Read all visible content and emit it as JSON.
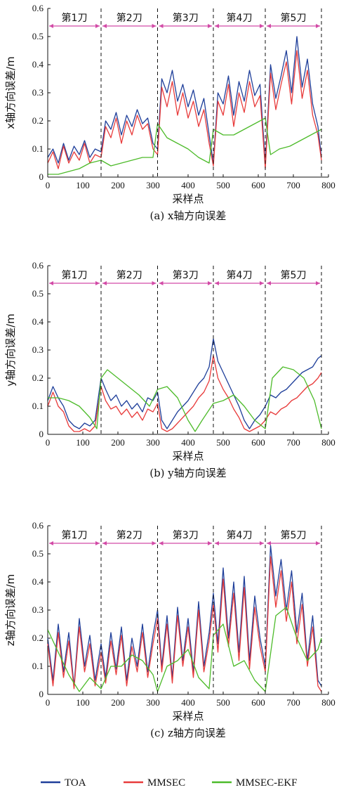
{
  "colors": {
    "TOA": "#1f3f9a",
    "MMSEC": "#e83b3b",
    "MMSEC-EKF": "#4dbb2a",
    "segment_arrow": "#d24aa6"
  },
  "legend": [
    "TOA",
    "MMSEC",
    "MMSEC-EKF"
  ],
  "chart_data": [
    {
      "type": "line",
      "title": "",
      "caption": "(a)  x轴方向误差",
      "xlabel": "采样点",
      "ylabel": "x轴方向误差/m",
      "xlim": [
        0,
        800
      ],
      "ylim": [
        0,
        0.6
      ],
      "xticks": [
        0,
        100,
        200,
        300,
        400,
        500,
        600,
        700,
        800
      ],
      "yticks": [
        "0",
        "0.1",
        "0.2",
        "0.3",
        "0.4",
        "0.5",
        "0.6"
      ],
      "segments": [
        {
          "label": "第1刀",
          "start": 0,
          "end": 152
        },
        {
          "label": "第2刀",
          "start": 152,
          "end": 313
        },
        {
          "label": "第3刀",
          "start": 313,
          "end": 472
        },
        {
          "label": "第4刀",
          "start": 472,
          "end": 620
        },
        {
          "label": "第5刀",
          "start": 620,
          "end": 780
        }
      ],
      "series": [
        {
          "name": "TOA",
          "x": [
            0,
            15,
            30,
            45,
            60,
            75,
            90,
            105,
            120,
            135,
            152,
            165,
            180,
            195,
            210,
            225,
            240,
            255,
            270,
            285,
            300,
            313,
            325,
            340,
            355,
            370,
            385,
            400,
            415,
            430,
            445,
            460,
            472,
            485,
            500,
            515,
            530,
            545,
            560,
            575,
            590,
            605,
            620,
            635,
            650,
            665,
            680,
            695,
            710,
            725,
            740,
            755,
            770,
            780
          ],
          "y": [
            0.07,
            0.1,
            0.05,
            0.12,
            0.06,
            0.11,
            0.08,
            0.13,
            0.07,
            0.1,
            0.09,
            0.2,
            0.17,
            0.23,
            0.15,
            0.22,
            0.18,
            0.24,
            0.19,
            0.21,
            0.12,
            0.1,
            0.35,
            0.3,
            0.38,
            0.27,
            0.33,
            0.25,
            0.31,
            0.22,
            0.28,
            0.15,
            0.05,
            0.3,
            0.26,
            0.36,
            0.22,
            0.34,
            0.27,
            0.38,
            0.29,
            0.33,
            0.05,
            0.4,
            0.28,
            0.36,
            0.45,
            0.3,
            0.5,
            0.32,
            0.42,
            0.26,
            0.18,
            0.07
          ]
        },
        {
          "name": "MMSEC",
          "x": [
            0,
            15,
            30,
            45,
            60,
            75,
            90,
            105,
            120,
            135,
            152,
            165,
            180,
            195,
            210,
            225,
            240,
            255,
            270,
            285,
            300,
            313,
            325,
            340,
            355,
            370,
            385,
            400,
            415,
            430,
            445,
            460,
            472,
            485,
            500,
            515,
            530,
            545,
            560,
            575,
            590,
            605,
            620,
            635,
            650,
            665,
            680,
            695,
            710,
            725,
            740,
            755,
            770,
            780
          ],
          "y": [
            0.05,
            0.09,
            0.03,
            0.11,
            0.05,
            0.09,
            0.06,
            0.12,
            0.05,
            0.08,
            0.07,
            0.18,
            0.14,
            0.21,
            0.12,
            0.2,
            0.15,
            0.22,
            0.17,
            0.19,
            0.1,
            0.08,
            0.32,
            0.25,
            0.34,
            0.22,
            0.3,
            0.21,
            0.27,
            0.18,
            0.24,
            0.12,
            0.04,
            0.27,
            0.22,
            0.33,
            0.18,
            0.3,
            0.23,
            0.34,
            0.25,
            0.29,
            0.03,
            0.37,
            0.24,
            0.33,
            0.41,
            0.26,
            0.45,
            0.28,
            0.38,
            0.22,
            0.15,
            0.06
          ]
        },
        {
          "name": "MMSEC-EKF",
          "x": [
            0,
            30,
            60,
            90,
            120,
            152,
            180,
            210,
            240,
            270,
            300,
            313,
            340,
            370,
            400,
            430,
            460,
            472,
            500,
            530,
            560,
            590,
            620,
            635,
            660,
            690,
            720,
            750,
            780
          ],
          "y": [
            0.01,
            0.01,
            0.02,
            0.03,
            0.05,
            0.06,
            0.04,
            0.05,
            0.06,
            0.07,
            0.07,
            0.19,
            0.14,
            0.12,
            0.1,
            0.07,
            0.05,
            0.17,
            0.15,
            0.15,
            0.17,
            0.19,
            0.21,
            0.08,
            0.1,
            0.11,
            0.13,
            0.15,
            0.17
          ]
        }
      ]
    },
    {
      "type": "line",
      "title": "",
      "caption": "(b)  y轴方向误差",
      "xlabel": "采样点",
      "ylabel": "y轴方向误差/m",
      "xlim": [
        0,
        800
      ],
      "ylim": [
        0,
        0.6
      ],
      "xticks": [
        0,
        100,
        200,
        300,
        400,
        500,
        600,
        700,
        800
      ],
      "yticks": [
        "0",
        "0.1",
        "0.2",
        "0.3",
        "0.4",
        "0.5",
        "0.6"
      ],
      "segments": [
        {
          "label": "第1刀",
          "start": 0,
          "end": 152
        },
        {
          "label": "第2刀",
          "start": 152,
          "end": 313
        },
        {
          "label": "第3刀",
          "start": 313,
          "end": 472
        },
        {
          "label": "第4刀",
          "start": 472,
          "end": 620
        },
        {
          "label": "第5刀",
          "start": 620,
          "end": 780
        }
      ],
      "series": [
        {
          "name": "TOA",
          "x": [
            0,
            15,
            30,
            45,
            60,
            75,
            90,
            105,
            120,
            135,
            152,
            165,
            180,
            195,
            210,
            225,
            240,
            255,
            270,
            285,
            300,
            313,
            325,
            340,
            355,
            370,
            385,
            400,
            415,
            430,
            445,
            460,
            472,
            485,
            500,
            515,
            530,
            545,
            560,
            575,
            590,
            605,
            620,
            635,
            650,
            665,
            680,
            695,
            710,
            725,
            740,
            755,
            770,
            780
          ],
          "y": [
            0.12,
            0.17,
            0.13,
            0.1,
            0.05,
            0.03,
            0.02,
            0.04,
            0.03,
            0.05,
            0.2,
            0.16,
            0.12,
            0.14,
            0.1,
            0.12,
            0.09,
            0.11,
            0.08,
            0.13,
            0.12,
            0.15,
            0.05,
            0.02,
            0.05,
            0.08,
            0.1,
            0.12,
            0.15,
            0.18,
            0.2,
            0.24,
            0.34,
            0.26,
            0.22,
            0.18,
            0.14,
            0.1,
            0.05,
            0.02,
            0.05,
            0.07,
            0.1,
            0.14,
            0.13,
            0.15,
            0.16,
            0.18,
            0.2,
            0.22,
            0.23,
            0.24,
            0.27,
            0.28
          ]
        },
        {
          "name": "MMSEC",
          "x": [
            0,
            15,
            30,
            45,
            60,
            75,
            90,
            105,
            120,
            135,
            152,
            165,
            180,
            195,
            210,
            225,
            240,
            255,
            270,
            285,
            300,
            313,
            325,
            340,
            355,
            370,
            385,
            400,
            415,
            430,
            445,
            460,
            472,
            485,
            500,
            515,
            530,
            545,
            560,
            575,
            590,
            605,
            620,
            635,
            650,
            665,
            680,
            695,
            710,
            725,
            740,
            755,
            770,
            780
          ],
          "y": [
            0.1,
            0.15,
            0.1,
            0.08,
            0.03,
            0.01,
            0.01,
            0.02,
            0.01,
            0.03,
            0.17,
            0.12,
            0.09,
            0.1,
            0.07,
            0.09,
            0.06,
            0.08,
            0.05,
            0.09,
            0.08,
            0.11,
            0.02,
            0.01,
            0.02,
            0.04,
            0.06,
            0.08,
            0.1,
            0.13,
            0.15,
            0.19,
            0.28,
            0.2,
            0.16,
            0.13,
            0.09,
            0.06,
            0.02,
            0.01,
            0.02,
            0.03,
            0.05,
            0.08,
            0.07,
            0.09,
            0.1,
            0.12,
            0.13,
            0.15,
            0.17,
            0.18,
            0.2,
            0.22
          ]
        },
        {
          "name": "MMSEC-EKF",
          "x": [
            0,
            30,
            60,
            90,
            120,
            140,
            152,
            170,
            200,
            230,
            260,
            290,
            313,
            340,
            370,
            400,
            420,
            440,
            472,
            500,
            530,
            560,
            590,
            620,
            640,
            670,
            700,
            730,
            760,
            780
          ],
          "y": [
            0.13,
            0.13,
            0.12,
            0.1,
            0.06,
            0.02,
            0.2,
            0.23,
            0.2,
            0.17,
            0.14,
            0.1,
            0.16,
            0.17,
            0.13,
            0.05,
            0.01,
            0.05,
            0.11,
            0.12,
            0.14,
            0.1,
            0.05,
            0.02,
            0.2,
            0.24,
            0.23,
            0.2,
            0.12,
            0.02
          ]
        }
      ]
    },
    {
      "type": "line",
      "title": "",
      "caption": "(c)  z轴方向误差",
      "xlabel": "采样点",
      "ylabel": "z轴方向误差/m",
      "xlim": [
        0,
        800
      ],
      "ylim": [
        0,
        0.6
      ],
      "xticks": [
        0,
        100,
        200,
        300,
        400,
        500,
        600,
        700,
        800
      ],
      "yticks": [
        "0",
        "0.1",
        "0.2",
        "0.3",
        "0.4",
        "0.5",
        "0.6"
      ],
      "segments": [
        {
          "label": "第1刀",
          "start": 0,
          "end": 152
        },
        {
          "label": "第2刀",
          "start": 152,
          "end": 313
        },
        {
          "label": "第3刀",
          "start": 313,
          "end": 472
        },
        {
          "label": "第4刀",
          "start": 472,
          "end": 620
        },
        {
          "label": "第5刀",
          "start": 620,
          "end": 780
        }
      ],
      "series": [
        {
          "name": "TOA",
          "x": [
            0,
            15,
            30,
            45,
            60,
            75,
            90,
            105,
            120,
            135,
            152,
            165,
            180,
            195,
            210,
            225,
            240,
            255,
            270,
            285,
            300,
            313,
            325,
            340,
            355,
            370,
            385,
            400,
            415,
            430,
            445,
            460,
            472,
            485,
            500,
            515,
            530,
            545,
            560,
            575,
            590,
            605,
            620,
            635,
            650,
            665,
            680,
            695,
            710,
            725,
            740,
            755,
            770,
            780
          ],
          "y": [
            0.2,
            0.05,
            0.25,
            0.08,
            0.22,
            0.03,
            0.27,
            0.1,
            0.21,
            0.05,
            0.18,
            0.06,
            0.22,
            0.09,
            0.24,
            0.05,
            0.2,
            0.1,
            0.25,
            0.08,
            0.21,
            0.3,
            0.1,
            0.28,
            0.06,
            0.31,
            0.12,
            0.27,
            0.08,
            0.33,
            0.1,
            0.22,
            0.36,
            0.18,
            0.45,
            0.2,
            0.4,
            0.15,
            0.42,
            0.12,
            0.35,
            0.2,
            0.1,
            0.53,
            0.35,
            0.48,
            0.3,
            0.44,
            0.22,
            0.36,
            0.12,
            0.28,
            0.05,
            0.03
          ]
        },
        {
          "name": "MMSEC",
          "x": [
            0,
            15,
            30,
            45,
            60,
            75,
            90,
            105,
            120,
            135,
            152,
            165,
            180,
            195,
            210,
            225,
            240,
            255,
            270,
            285,
            300,
            313,
            325,
            340,
            355,
            370,
            385,
            400,
            415,
            430,
            445,
            460,
            472,
            485,
            500,
            515,
            530,
            545,
            560,
            575,
            590,
            605,
            620,
            635,
            650,
            665,
            680,
            695,
            710,
            725,
            740,
            755,
            770,
            780
          ],
          "y": [
            0.18,
            0.03,
            0.22,
            0.06,
            0.19,
            0.02,
            0.24,
            0.08,
            0.18,
            0.03,
            0.15,
            0.04,
            0.19,
            0.07,
            0.21,
            0.03,
            0.17,
            0.08,
            0.22,
            0.06,
            0.18,
            0.27,
            0.08,
            0.25,
            0.04,
            0.28,
            0.1,
            0.24,
            0.06,
            0.3,
            0.08,
            0.19,
            0.32,
            0.15,
            0.41,
            0.17,
            0.36,
            0.12,
            0.38,
            0.09,
            0.31,
            0.17,
            0.08,
            0.49,
            0.31,
            0.44,
            0.26,
            0.4,
            0.18,
            0.32,
            0.1,
            0.24,
            0.03,
            0.01
          ]
        },
        {
          "name": "MMSEC-EKF",
          "x": [
            0,
            30,
            60,
            90,
            120,
            152,
            180,
            210,
            240,
            270,
            300,
            313,
            340,
            370,
            400,
            430,
            460,
            472,
            500,
            530,
            560,
            590,
            620,
            650,
            680,
            710,
            740,
            770,
            780
          ],
          "y": [
            0.23,
            0.15,
            0.07,
            0.01,
            0.06,
            0.02,
            0.1,
            0.1,
            0.14,
            0.12,
            0.07,
            0.01,
            0.1,
            0.12,
            0.16,
            0.06,
            0.02,
            0.21,
            0.25,
            0.1,
            0.12,
            0.05,
            0.01,
            0.28,
            0.31,
            0.2,
            0.12,
            0.16,
            0.2
          ]
        }
      ]
    }
  ]
}
